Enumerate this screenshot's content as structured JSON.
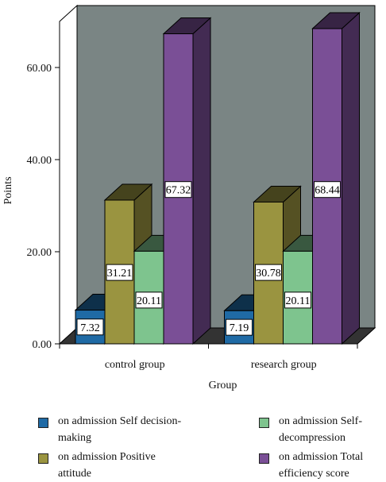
{
  "chart_data": {
    "type": "bar",
    "title": "",
    "xlabel": "Group",
    "ylabel": "Points",
    "ylim": [
      0,
      70
    ],
    "yticks": [
      "0.00",
      "20.00",
      "40.00",
      "60.00"
    ],
    "categories": [
      "control group",
      "research group"
    ],
    "series": [
      {
        "name": "on admission Self decision-making",
        "values": [
          7.32,
          7.19
        ],
        "labels": [
          "7.32",
          "7.19"
        ],
        "color": "#1f6aa5"
      },
      {
        "name": "on admission Positive attitude",
        "values": [
          31.21,
          30.78
        ],
        "labels": [
          "31.21",
          "30.78"
        ],
        "color": "#9a9440"
      },
      {
        "name": "on admission Self-decompression",
        "values": [
          20.11,
          20.11
        ],
        "labels": [
          "20.11",
          "20.11"
        ],
        "color": "#7ec48e"
      },
      {
        "name": "on admission Total efficiency score",
        "values": [
          67.32,
          68.44
        ],
        "labels": [
          "67.32",
          "68.44"
        ],
        "color": "#7a4f96"
      }
    ],
    "legend_position": "bottom",
    "three_d": true,
    "background_wall_color": "#7a8584"
  },
  "legend": [
    {
      "text": "on admission Self decision-\nmaking",
      "color": "#1f6aa5"
    },
    {
      "text": "on admission Self-\ndecompression",
      "color": "#7ec48e"
    },
    {
      "text": "on admission Positive\nattitude",
      "color": "#9a9440"
    },
    {
      "text": "on admission Total\nefficiency score",
      "color": "#7a4f96"
    }
  ]
}
